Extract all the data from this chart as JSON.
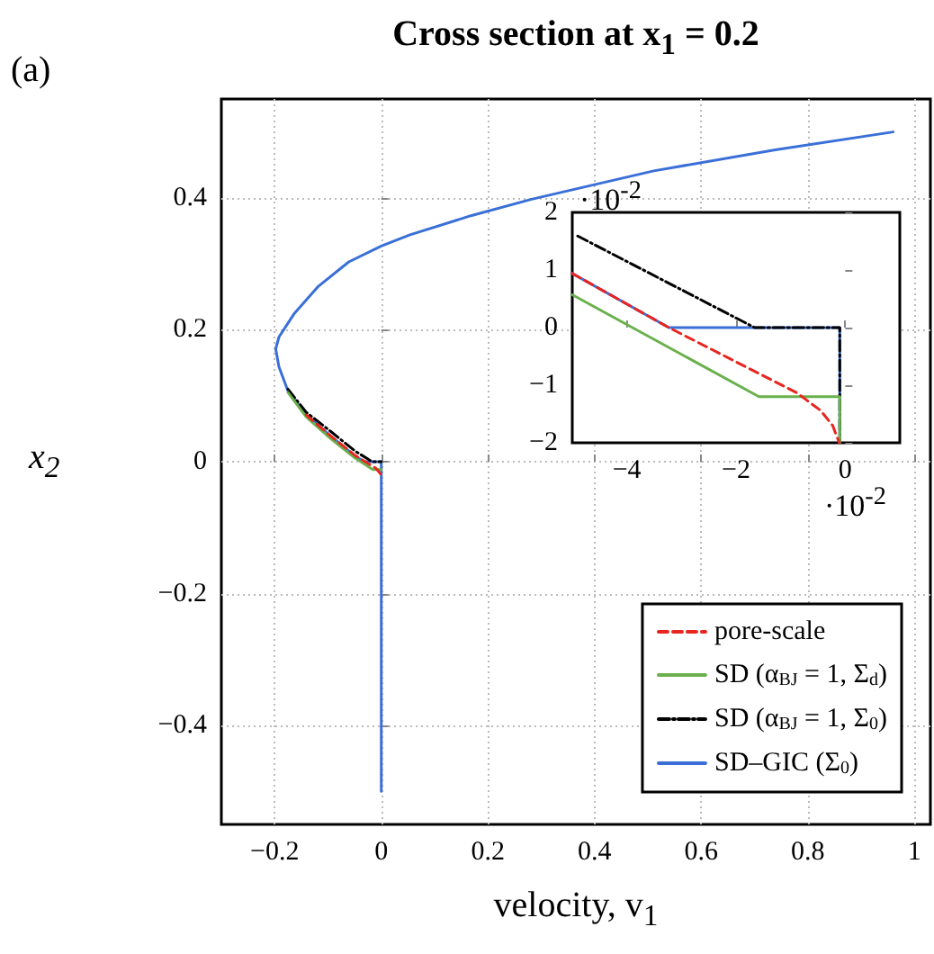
{
  "chart_data": [
    {
      "type": "line",
      "title": "Cross section at x$_{1}$ = 0.2",
      "xlabel": "velocity, v$_{1}$",
      "ylabel": "x$_{2}$",
      "annotations": [
        "(a)"
      ],
      "xlim": [
        -0.3,
        1.03
      ],
      "ylim": [
        -0.55,
        0.55
      ],
      "xticks": [
        -0.2,
        0,
        0.2,
        0.4,
        0.6,
        0.8,
        1
      ],
      "yticks": [
        -0.4,
        -0.2,
        0,
        0.2,
        0.4
      ],
      "grid": true,
      "legend": "bottom right",
      "marker": "none",
      "series": [
        {
          "name": "pore-scale",
          "color": "#e8251f",
          "line_style": "dashed",
          "x": [
            -0.141,
            -0.095,
            -0.05,
            -0.03,
            -0.01,
            0
          ],
          "values": [
            0.071,
            0.039,
            0.01,
            0,
            -0.01,
            -0.02
          ]
        },
        {
          "name": "SD (α$_{BJ}$ = 1, Σ$_{d}$)",
          "color": "#6ab04c",
          "line_style": "solid",
          "x": [
            -0.175,
            -0.141,
            -0.095,
            -0.05,
            -0.016,
            0
          ],
          "values": [
            0.105,
            0.068,
            0.035,
            0.006,
            -0.012,
            -0.012
          ]
        },
        {
          "name": "SD (α$_{BJ}$ = 1, Σ$_{0}$)",
          "color": "#000000",
          "line_style": "dashdot",
          "x": [
            -0.175,
            -0.141,
            -0.095,
            -0.049,
            -0.017,
            0
          ],
          "values": [
            0.11,
            0.075,
            0.046,
            0.016,
            0,
            0
          ]
        },
        {
          "name": "SD–GIC (Σ$_{0}$)",
          "color": "#3a6fd8",
          "line_style": "solid",
          "x": [
            0.96,
            0.739,
            0.511,
            0.282,
            0.168,
            0.054,
            0,
            -0.061,
            -0.118,
            -0.163,
            -0.192,
            -0.198,
            -0.192,
            -0.175,
            -0.141,
            -0.095,
            -0.05,
            -0.032,
            0,
            0
          ],
          "values": [
            0.5,
            0.473,
            0.441,
            0.398,
            0.373,
            0.344,
            0.327,
            0.303,
            0.266,
            0.225,
            0.189,
            0.171,
            0.144,
            0.107,
            0.071,
            0.039,
            0.009,
            0,
            0,
            -0.5
          ]
        }
      ]
    },
    {
      "type": "line",
      "annotations": [
        "·10$^{-2}$",
        "·10$^{-2}$"
      ],
      "xlim": [
        -5,
        1
      ],
      "ylim": [
        -2,
        2
      ],
      "xticks": [
        -4,
        -2,
        0
      ],
      "yticks": [
        -2,
        -1,
        0,
        1,
        2
      ],
      "marker": "none",
      "series": [
        {
          "color": "#e8251f",
          "line_style": "dashed",
          "x": [
            -5,
            -3.23,
            -0.89,
            -0.45,
            -0.23,
            -0.11
          ],
          "values": [
            0.94,
            0,
            -1.13,
            -1.44,
            -1.7,
            -2
          ]
        },
        {
          "color": "#6ab04c",
          "line_style": "solid",
          "x": [
            -5,
            -1.58,
            -0.1,
            -0.1
          ],
          "values": [
            0.57,
            -1.2,
            -1.2,
            -2
          ]
        },
        {
          "color": "#000000",
          "line_style": "dashdot",
          "x": [
            -4.9,
            -1.66,
            -0.1,
            -0.1
          ],
          "values": [
            1.59,
            0,
            0,
            -2
          ]
        },
        {
          "color": "#3a6fd8",
          "line_style": "solid",
          "x": [
            -5,
            -3.23,
            -0.1,
            -0.1
          ],
          "values": [
            0.94,
            0,
            0,
            -2
          ]
        }
      ]
    }
  ]
}
